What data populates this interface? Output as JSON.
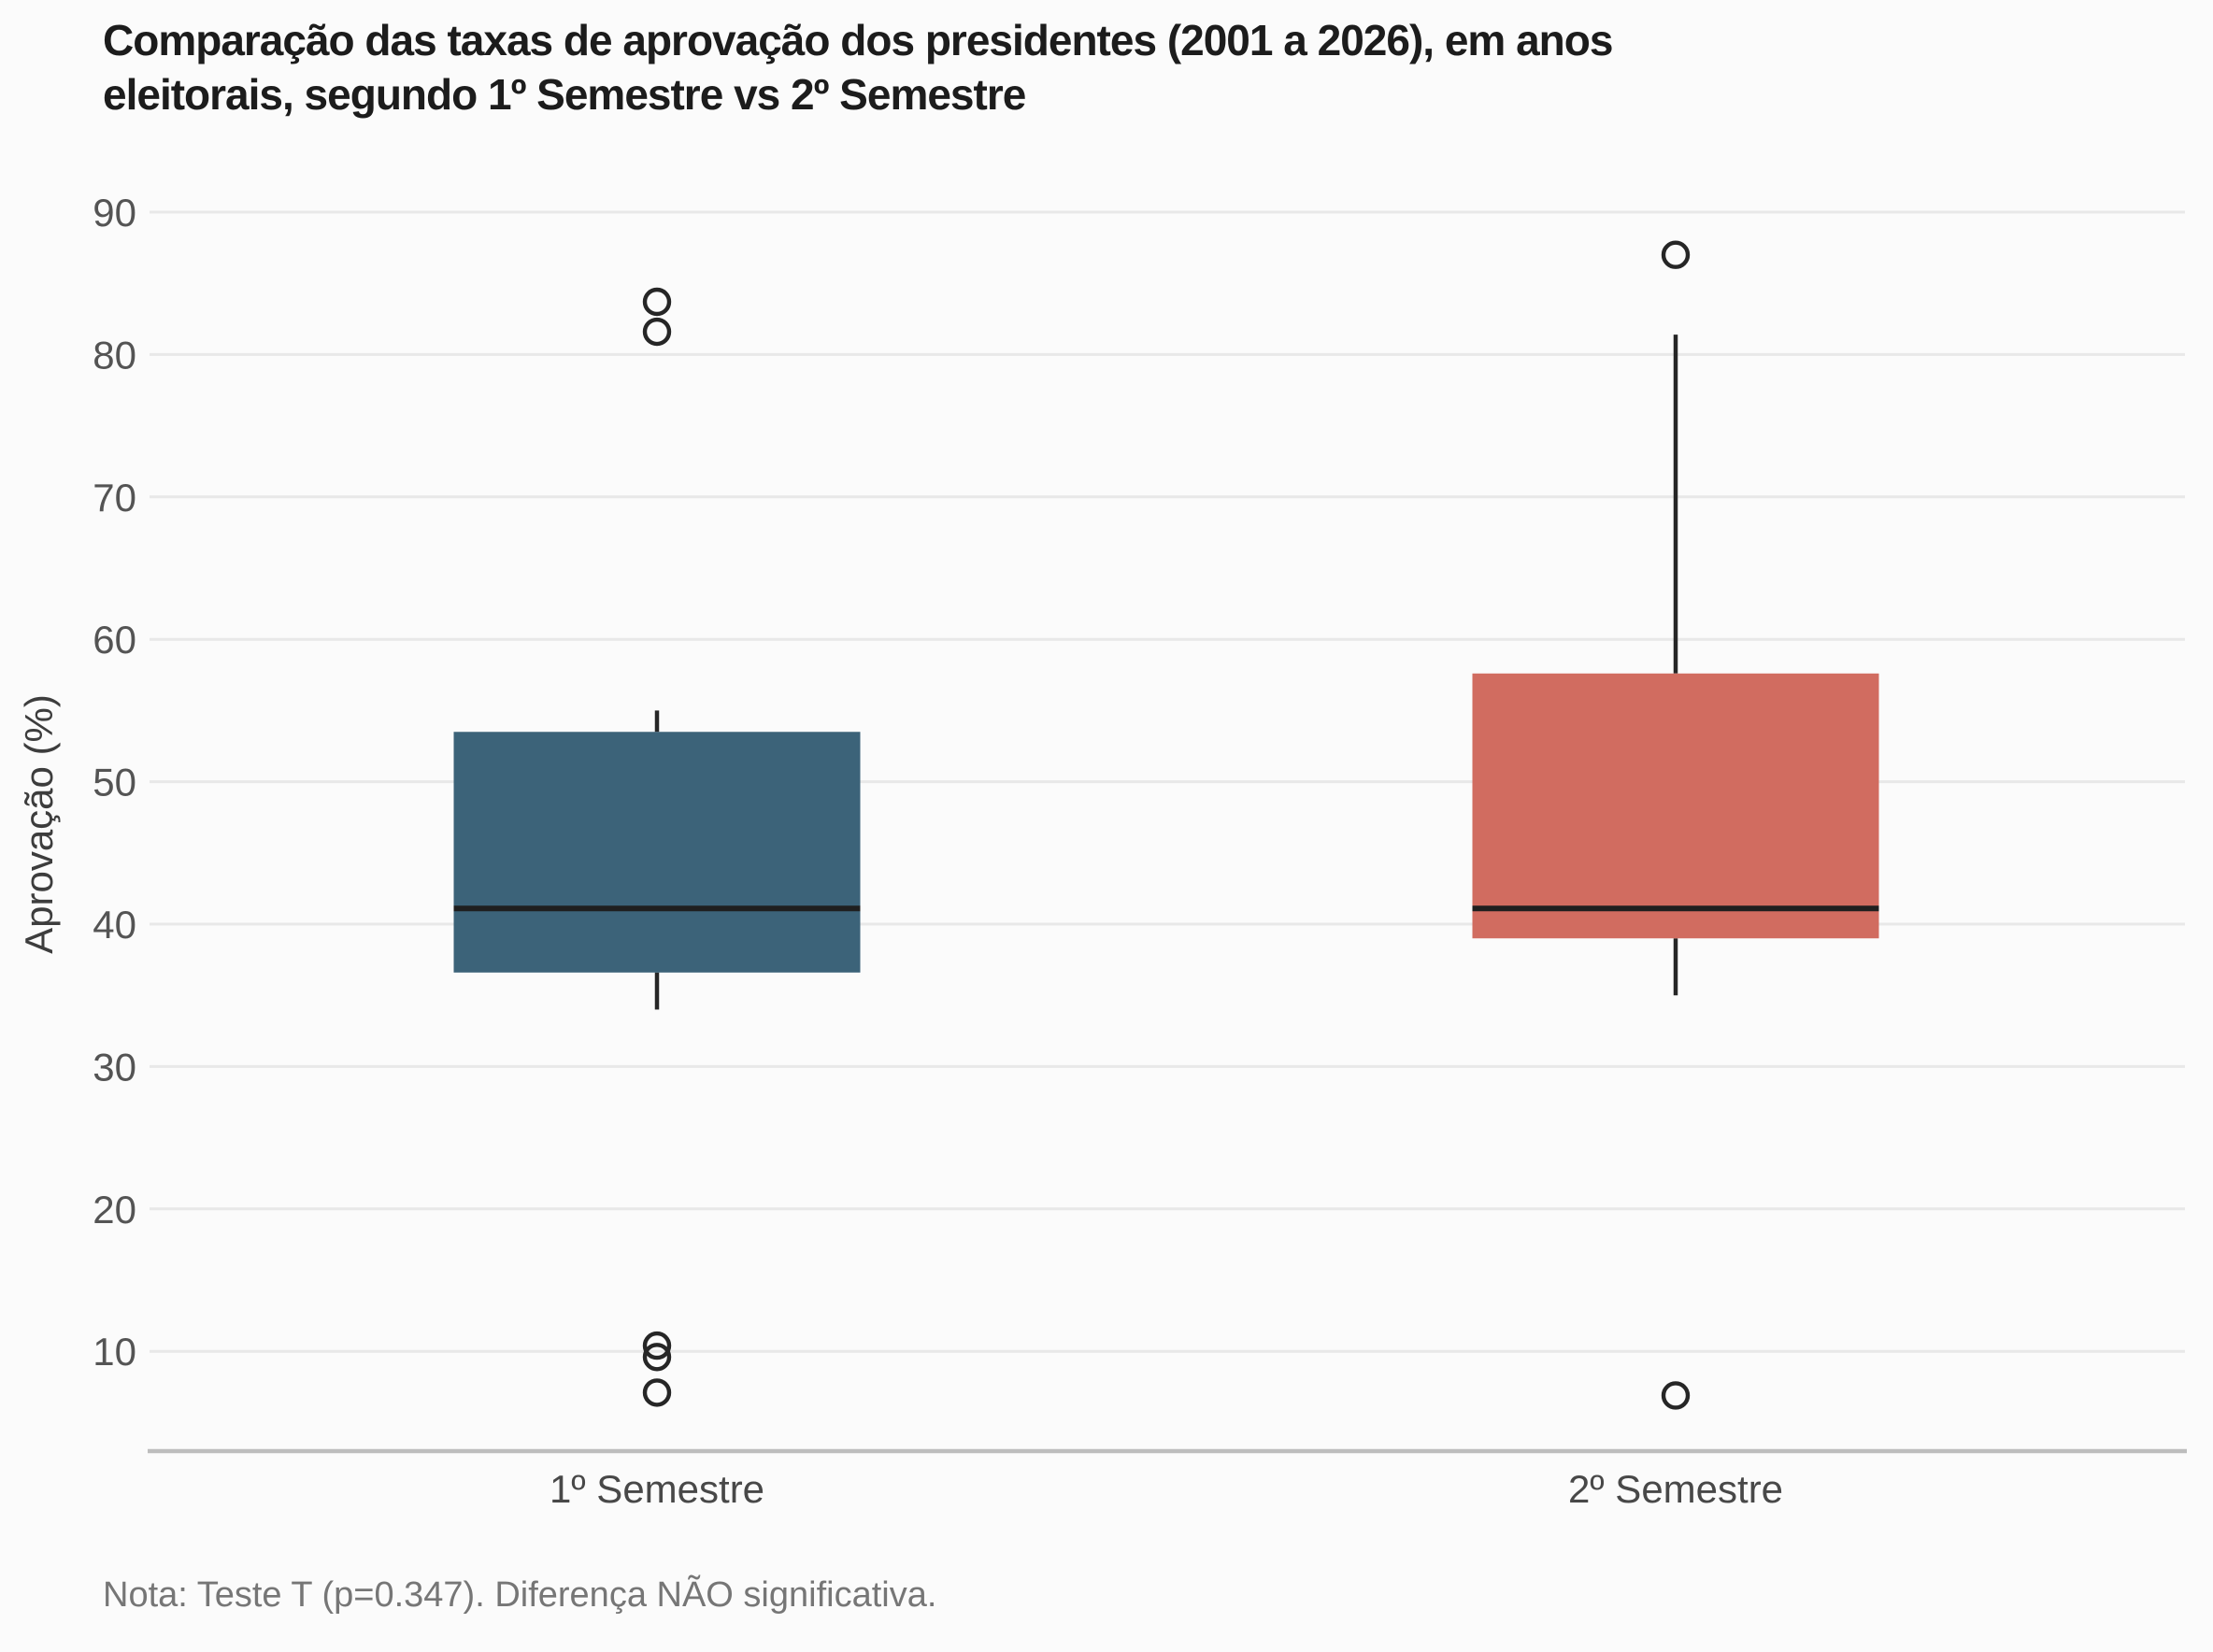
{
  "page": {
    "title": "Comparação das taxas de aprovação dos presidentes (2001 a 2026), em anos\neleitorais, segundo 1º Semestre vs 2º Semestre",
    "note": "Nota: Teste T (p=0.347). Diferença NÃO significativa."
  },
  "chart_data": {
    "type": "boxplot",
    "title": "Comparação das taxas de aprovação dos presidentes (2001 a 2026), em anos eleitorais, segundo 1º Semestre vs 2º Semestre",
    "note": "Nota: Teste T (p=0.347). Diferença NÃO significativa.",
    "xlabel": "",
    "ylabel": "Aprovação (%)",
    "categories": [
      "1º Semestre",
      "2º Semestre"
    ],
    "y_ticks": [
      10,
      20,
      30,
      40,
      50,
      60,
      70,
      80,
      90
    ],
    "ylim": [
      3,
      95.5
    ],
    "grid": "horizontal-only",
    "legend": "none",
    "series": [
      {
        "name": "1º Semestre",
        "color": "#3C6379",
        "whisker_low": 34,
        "q1": 36.6,
        "median": 41.1,
        "q3": 53.5,
        "whisker_high": 55,
        "outliers": [
          83.7,
          81.6,
          10.4,
          9.6,
          7.1
        ]
      },
      {
        "name": "2º Semestre",
        "color": "#D16C60",
        "whisker_low": 35,
        "q1": 39,
        "median": 41.1,
        "q3": 57.6,
        "whisker_high": 81.4,
        "outliers": [
          87,
          6.9
        ]
      }
    ],
    "styles": {
      "median_color": "#1f1f1f",
      "whisker_color": "#262626",
      "outlier_color": "#262626",
      "gridline_color": "#e8e8e8",
      "axisline_color": "#bdbdbd",
      "background": "#fbfbfb"
    }
  }
}
